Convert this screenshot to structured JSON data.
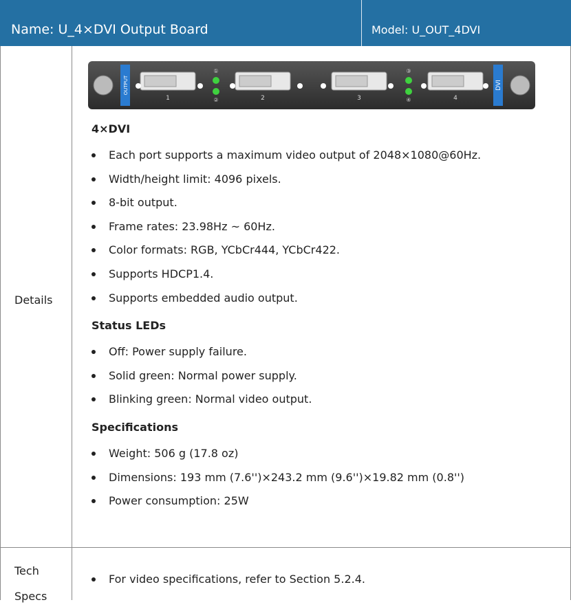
{
  "header": {
    "name": "Name: U_4×DVI Output Board",
    "model": "Model: U_OUT_4DVI"
  },
  "board": {
    "left_label": "OUTPUT",
    "right_label": "DVI",
    "ports": [
      "1",
      "2",
      "3",
      "4"
    ],
    "leds": [
      "①",
      "②",
      "③",
      "④"
    ]
  },
  "details": {
    "label": "Details",
    "sections": [
      {
        "title": "4×DVI",
        "items": [
          "Each port supports a maximum video output of 2048×1080@60Hz.",
          "Width/height limit: 4096 pixels.",
          "8-bit output.",
          "Frame rates: 23.98Hz ~ 60Hz.",
          "Color formats: RGB, YCbCr444, YCbCr422.",
          "Supports HDCP1.4.",
          "Supports embedded audio output."
        ]
      },
      {
        "title": "Status LEDs",
        "items": [
          "Off: Power supply failure.",
          "Solid green: Normal power supply.",
          "Blinking green: Normal video output."
        ]
      },
      {
        "title": "Specifications",
        "items": [
          "Weight: 506 g (17.8 oz)",
          "Dimensions: 193 mm (7.6'')×243.2 mm (9.6'')×19.82 mm (0.8'')",
          "Power consumption: 25W"
        ]
      }
    ]
  },
  "tech_specs": {
    "label": "Tech Specs",
    "items": [
      "For video specifications, refer to Section 5.2.4."
    ]
  }
}
